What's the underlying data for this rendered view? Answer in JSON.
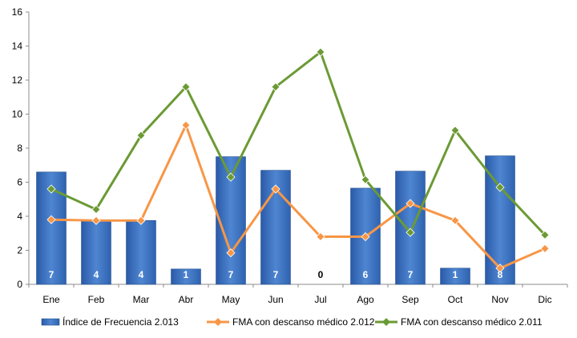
{
  "chart_data": {
    "type": "bar",
    "categories": [
      "Ene",
      "Feb",
      "Mar",
      "Abr",
      "May",
      "Jun",
      "Jul",
      "Ago",
      "Sep",
      "Oct",
      "Nov",
      "Dic"
    ],
    "ylim": [
      0,
      16
    ],
    "yticks": [
      0,
      2,
      4,
      6,
      8,
      10,
      12,
      14,
      16
    ],
    "grid": false,
    "legend_position": "bottom",
    "series": [
      {
        "name": "Índice de Frecuencia 2.013",
        "kind": "bar",
        "color": "#4a7fc9",
        "values": [
          6.6,
          3.75,
          3.75,
          0.9,
          7.5,
          6.7,
          0,
          5.65,
          6.65,
          0.95,
          7.55,
          null
        ],
        "data_labels": [
          "7",
          "4",
          "4",
          "1",
          "7",
          "7",
          "0",
          "6",
          "7",
          "1",
          "8",
          ""
        ]
      },
      {
        "name": "FMA con descanso médico 2.012",
        "kind": "line",
        "color": "#f79646",
        "values": [
          3.8,
          3.75,
          3.75,
          9.35,
          1.85,
          5.6,
          2.8,
          2.8,
          4.75,
          3.75,
          0.95,
          2.1
        ]
      },
      {
        "name": "FMA con descanso médico 2.011",
        "kind": "line",
        "color": "#6b9a34",
        "values": [
          5.6,
          4.4,
          8.75,
          11.6,
          6.3,
          11.6,
          13.65,
          6.15,
          3.05,
          9.05,
          5.7,
          2.9
        ]
      }
    ]
  }
}
